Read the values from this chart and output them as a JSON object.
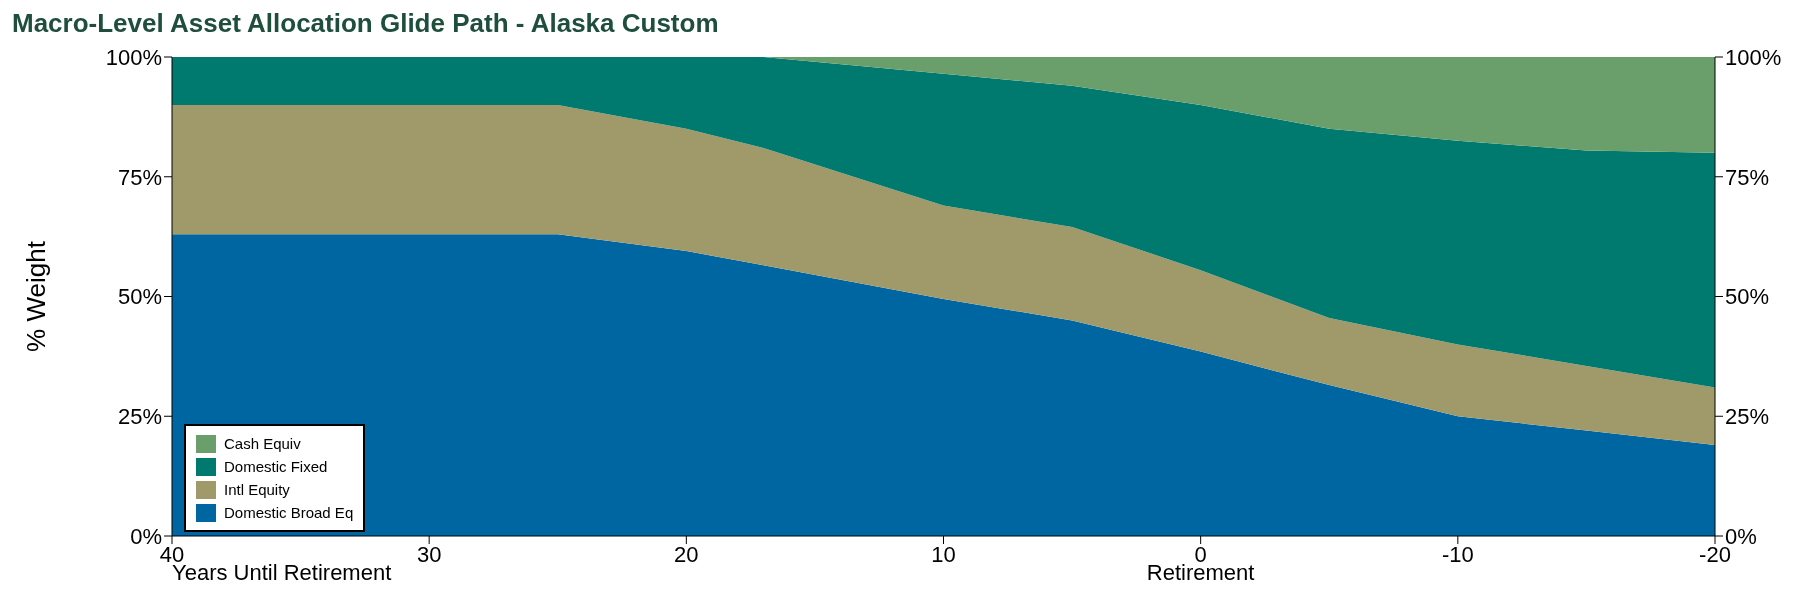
{
  "chart_data": {
    "type": "area",
    "title": "Macro-Level Asset Allocation Glide Path - Alaska Custom",
    "xlabel": "Years Until Retirement",
    "ylabel": "% Weight",
    "annotations": [
      "Retirement"
    ],
    "x": [
      40,
      25,
      20,
      17,
      10,
      5,
      0,
      -5,
      -10,
      -15,
      -20
    ],
    "stacked": true,
    "series": [
      {
        "name": "Domestic Broad Eq",
        "color": "#0066a1",
        "values": [
          63,
          63,
          59.5,
          56.5,
          49.5,
          45,
          38.5,
          31.5,
          25,
          22,
          19
        ]
      },
      {
        "name": "Intl Equity",
        "color": "#a09a6a",
        "values": [
          27,
          27,
          25.5,
          24.5,
          19.5,
          19.5,
          17,
          14,
          15,
          13.5,
          12
        ]
      },
      {
        "name": "Domestic Fixed",
        "color": "#007a6e",
        "values": [
          10,
          10,
          15,
          19,
          27.5,
          29.5,
          34.5,
          39.5,
          42.5,
          45,
          49
        ]
      },
      {
        "name": "Cash Equiv",
        "color": "#6a9e6a",
        "values": [
          0,
          0,
          0,
          0,
          3.5,
          6,
          10,
          15,
          17.5,
          19.5,
          20
        ]
      }
    ],
    "xlim": [
      40,
      -20
    ],
    "xticks": [
      40,
      30,
      20,
      10,
      0,
      -10,
      -20
    ],
    "ylim": [
      0,
      100
    ],
    "yticks": [
      {
        "value": 0,
        "label": "0%"
      },
      {
        "value": 25,
        "label": "25%"
      },
      {
        "value": 50,
        "label": "50%"
      },
      {
        "value": 75,
        "label": "75%"
      },
      {
        "value": 100,
        "label": "100%"
      }
    ],
    "y2lim": [
      0,
      100
    ],
    "y2ticks": [
      {
        "value": 0,
        "label": "0%"
      },
      {
        "value": 25,
        "label": "25%"
      },
      {
        "value": 50,
        "label": "50%"
      },
      {
        "value": 75,
        "label": "75%"
      },
      {
        "value": 100,
        "label": "100%"
      }
    ],
    "legend": "bottom left",
    "grid": false
  }
}
